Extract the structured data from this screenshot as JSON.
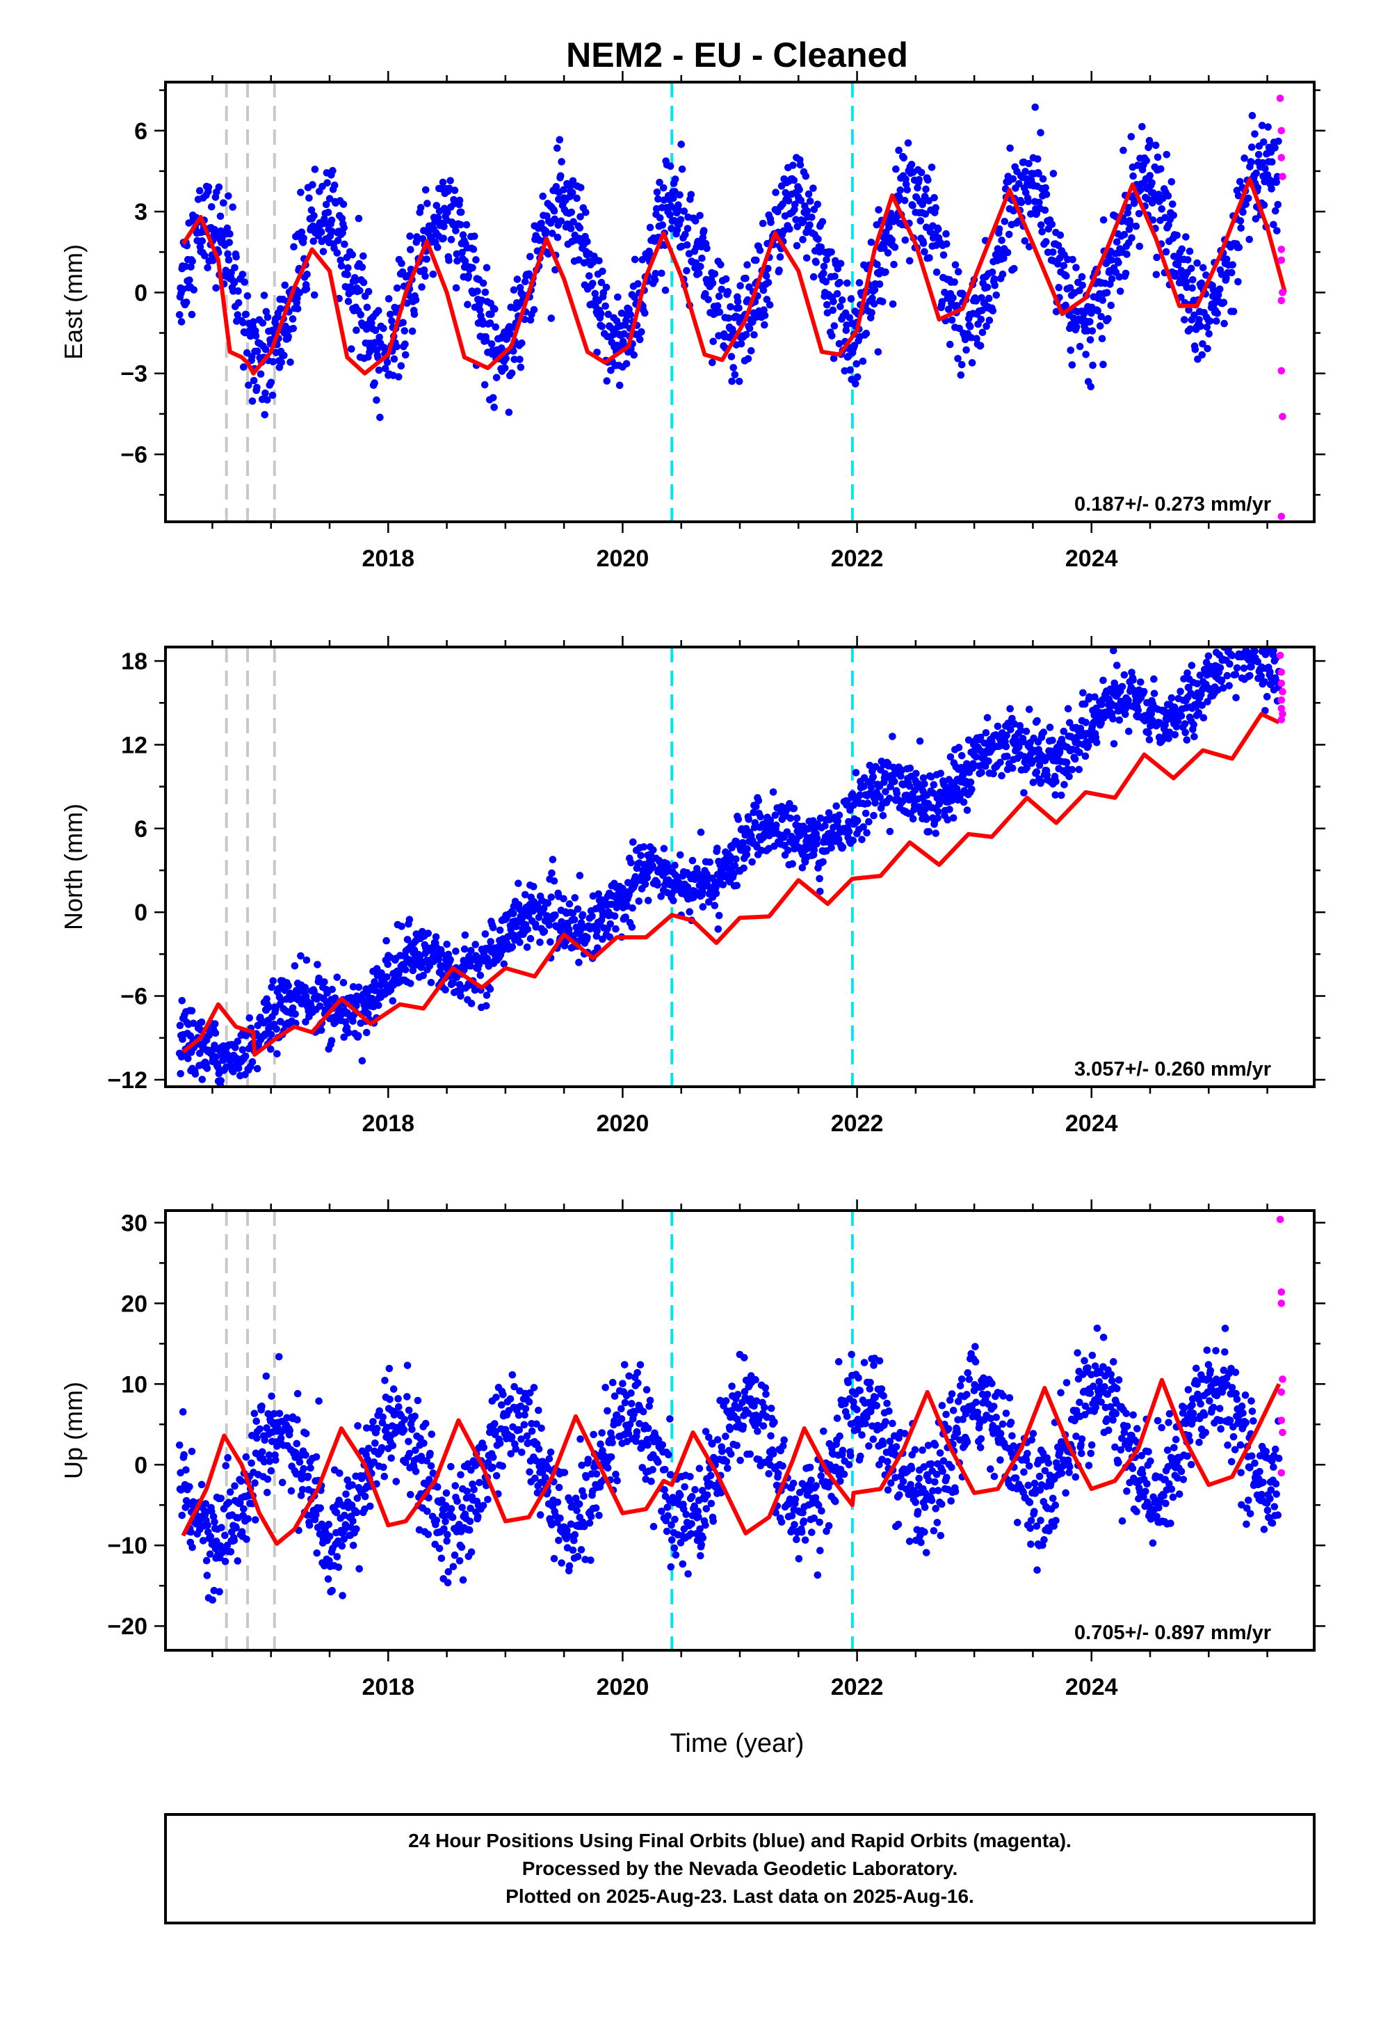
{
  "figure": {
    "title": "NEM2  - EU - Cleaned",
    "xlabel": "Time (year)",
    "footer": [
      "24 Hour Positions Using Final Orbits (blue) and Rapid Orbits (magenta).",
      "Processed by the Nevada Geodetic Laboratory.",
      "Plotted on 2025-Aug-23. Last data on 2025-Aug-16."
    ]
  },
  "colors": {
    "final_orbits": "#0000ff",
    "rapid_orbits": "#ff00ff",
    "model": "#ff0000",
    "equipment_change": "#c8c8c8",
    "event": "#00e5ee"
  },
  "chart_data": [
    {
      "type": "scatter",
      "component": "east",
      "ylabel": "East (mm)",
      "rate_text": "0.187+/- 0.273 mm/yr",
      "xlim": [
        2016.1,
        2025.9
      ],
      "ylim": [
        -8.5,
        7.8
      ],
      "xticks": [
        2018,
        2020,
        2022,
        2024
      ],
      "yticks": [
        -6,
        -3,
        0,
        3,
        6
      ],
      "ytick_labels": [
        "−6",
        "−3",
        "0",
        "3",
        "6"
      ],
      "grey_dashed_x": [
        2016.62,
        2016.8,
        2017.03
      ],
      "cyan_dashed_x": [
        2020.42,
        2021.96
      ],
      "trend": {
        "slope": 0.187,
        "intercept_2016": 0.0,
        "seasonal_amp": 2.5,
        "seasonal_phase": 0.04,
        "noise_sd": 0.95
      },
      "model_points": [
        [
          2016.25,
          1.8
        ],
        [
          2016.4,
          2.8
        ],
        [
          2016.55,
          1.2
        ],
        [
          2016.65,
          -2.2
        ],
        [
          2016.75,
          -2.4
        ],
        [
          2016.8,
          -2.6
        ],
        [
          2016.85,
          -3.0
        ],
        [
          2017.0,
          -2.2
        ],
        [
          2017.2,
          0.2
        ],
        [
          2017.35,
          1.6
        ],
        [
          2017.5,
          0.8
        ],
        [
          2017.65,
          -2.4
        ],
        [
          2017.8,
          -3.0
        ],
        [
          2018.0,
          -2.3
        ],
        [
          2018.15,
          0.0
        ],
        [
          2018.33,
          1.9
        ],
        [
          2018.5,
          0.0
        ],
        [
          2018.65,
          -2.4
        ],
        [
          2018.85,
          -2.8
        ],
        [
          2019.05,
          -2.0
        ],
        [
          2019.2,
          0.0
        ],
        [
          2019.35,
          2.0
        ],
        [
          2019.5,
          0.5
        ],
        [
          2019.7,
          -2.2
        ],
        [
          2019.85,
          -2.6
        ],
        [
          2020.05,
          -2.0
        ],
        [
          2020.2,
          0.6
        ],
        [
          2020.35,
          2.2
        ],
        [
          2020.5,
          0.6
        ],
        [
          2020.7,
          -2.3
        ],
        [
          2020.85,
          -2.5
        ],
        [
          2021.05,
          -1.0
        ],
        [
          2021.3,
          2.2
        ],
        [
          2021.5,
          0.8
        ],
        [
          2021.7,
          -2.2
        ],
        [
          2021.85,
          -2.3
        ],
        [
          2022.0,
          -1.4
        ],
        [
          2022.15,
          1.6
        ],
        [
          2022.3,
          3.6
        ],
        [
          2022.5,
          1.8
        ],
        [
          2022.7,
          -1.0
        ],
        [
          2022.9,
          -0.6
        ],
        [
          2023.1,
          1.6
        ],
        [
          2023.3,
          3.8
        ],
        [
          2023.5,
          1.8
        ],
        [
          2023.75,
          -0.8
        ],
        [
          2023.95,
          -0.2
        ],
        [
          2024.15,
          1.8
        ],
        [
          2024.35,
          4.0
        ],
        [
          2024.55,
          2.0
        ],
        [
          2024.75,
          -0.5
        ],
        [
          2024.9,
          -0.5
        ],
        [
          2025.1,
          1.4
        ],
        [
          2025.35,
          4.2
        ],
        [
          2025.5,
          2.4
        ],
        [
          2025.65,
          0.0
        ]
      ],
      "rapid_points": [
        [
          2025.61,
          7.2
        ],
        [
          2025.62,
          6.0
        ],
        [
          2025.62,
          5.0
        ],
        [
          2025.63,
          4.3
        ],
        [
          2025.62,
          1.6
        ],
        [
          2025.62,
          1.2
        ],
        [
          2025.63,
          0.0
        ],
        [
          2025.62,
          -0.3
        ],
        [
          2025.62,
          -2.9
        ],
        [
          2025.63,
          -4.6
        ],
        [
          2025.62,
          -8.3
        ]
      ]
    },
    {
      "type": "scatter",
      "component": "north",
      "ylabel": "North (mm)",
      "rate_text": "3.057+/- 0.260 mm/yr",
      "xlim": [
        2016.1,
        2025.9
      ],
      "ylim": [
        -12.5,
        19.0
      ],
      "xticks": [
        2018,
        2020,
        2022,
        2024
      ],
      "yticks": [
        -12,
        -6,
        0,
        6,
        12,
        18
      ],
      "ytick_labels": [
        "−12",
        "−6",
        "0",
        "6",
        "12",
        "18"
      ],
      "grey_dashed_x": [
        2016.62,
        2016.8,
        2017.03
      ],
      "cyan_dashed_x": [
        2020.42,
        2021.96
      ],
      "trend": {
        "slope": 3.057,
        "intercept_2016": -10.6,
        "seasonal_amp": 1.3,
        "seasonal_phase": 0.3,
        "noise_sd": 1.1
      },
      "model_points": [
        [
          2016.25,
          -10.0
        ],
        [
          2016.4,
          -9.0
        ],
        [
          2016.55,
          -6.6
        ],
        [
          2016.7,
          -8.2
        ],
        [
          2016.85,
          -8.6
        ],
        [
          2016.86,
          -10.2
        ],
        [
          2017.05,
          -9.0
        ],
        [
          2017.2,
          -8.2
        ],
        [
          2017.35,
          -8.6
        ],
        [
          2017.6,
          -6.2
        ],
        [
          2017.85,
          -8.0
        ],
        [
          2018.1,
          -6.6
        ],
        [
          2018.3,
          -6.9
        ],
        [
          2018.55,
          -4.0
        ],
        [
          2018.8,
          -5.4
        ],
        [
          2019.0,
          -4.0
        ],
        [
          2019.25,
          -4.6
        ],
        [
          2019.5,
          -1.6
        ],
        [
          2019.75,
          -3.3
        ],
        [
          2019.95,
          -1.8
        ],
        [
          2020.2,
          -1.8
        ],
        [
          2020.42,
          -0.2
        ],
        [
          2020.6,
          -0.6
        ],
        [
          2020.8,
          -2.2
        ],
        [
          2021.0,
          -0.4
        ],
        [
          2021.25,
          -0.3
        ],
        [
          2021.5,
          2.3
        ],
        [
          2021.75,
          0.6
        ],
        [
          2021.96,
          2.4
        ],
        [
          2022.2,
          2.6
        ],
        [
          2022.45,
          5.0
        ],
        [
          2022.7,
          3.4
        ],
        [
          2022.95,
          5.6
        ],
        [
          2023.15,
          5.4
        ],
        [
          2023.45,
          8.2
        ],
        [
          2023.7,
          6.4
        ],
        [
          2023.95,
          8.6
        ],
        [
          2024.2,
          8.2
        ],
        [
          2024.45,
          11.3
        ],
        [
          2024.7,
          9.6
        ],
        [
          2024.95,
          11.6
        ],
        [
          2025.2,
          11.0
        ],
        [
          2025.45,
          14.2
        ],
        [
          2025.6,
          13.6
        ]
      ],
      "rapid_points": [
        [
          2025.61,
          18.4
        ],
        [
          2025.62,
          17.2
        ],
        [
          2025.62,
          16.4
        ],
        [
          2025.63,
          15.8
        ],
        [
          2025.62,
          15.2
        ],
        [
          2025.62,
          14.6
        ],
        [
          2025.63,
          14.2
        ],
        [
          2025.62,
          13.8
        ]
      ]
    },
    {
      "type": "scatter",
      "component": "up",
      "ylabel": "Up (mm)",
      "rate_text": "0.705+/- 0.897 mm/yr",
      "xlim": [
        2016.1,
        2025.9
      ],
      "ylim": [
        -23,
        31.5
      ],
      "xticks": [
        2018,
        2020,
        2022,
        2024
      ],
      "yticks": [
        -20,
        -10,
        0,
        10,
        20,
        30
      ],
      "ytick_labels": [
        "−20",
        "−10",
        "0",
        "10",
        "20",
        "30"
      ],
      "grey_dashed_x": [
        2016.62,
        2016.8,
        2017.03
      ],
      "cyan_dashed_x": [
        2020.42,
        2021.96
      ],
      "trend": {
        "slope": 0.705,
        "intercept_2016": -3.0,
        "seasonal_amp": 6.5,
        "seasonal_phase": 0.45,
        "noise_sd": 3.3
      },
      "model_points": [
        [
          2016.25,
          -8.8
        ],
        [
          2016.45,
          -3.0
        ],
        [
          2016.6,
          3.6
        ],
        [
          2016.75,
          0.0
        ],
        [
          2016.9,
          -6.0
        ],
        [
          2017.05,
          -9.8
        ],
        [
          2017.2,
          -8.0
        ],
        [
          2017.4,
          -3.0
        ],
        [
          2017.6,
          4.5
        ],
        [
          2017.8,
          0.0
        ],
        [
          2018.0,
          -7.5
        ],
        [
          2018.15,
          -7.0
        ],
        [
          2018.4,
          -2.0
        ],
        [
          2018.6,
          5.5
        ],
        [
          2018.8,
          0.0
        ],
        [
          2019.0,
          -7.0
        ],
        [
          2019.2,
          -6.5
        ],
        [
          2019.4,
          -1.5
        ],
        [
          2019.6,
          6.0
        ],
        [
          2019.8,
          0.0
        ],
        [
          2020.0,
          -6.0
        ],
        [
          2020.2,
          -5.5
        ],
        [
          2020.35,
          -2.0
        ],
        [
          2020.42,
          -2.5
        ],
        [
          2020.6,
          4.0
        ],
        [
          2020.8,
          -1.0
        ],
        [
          2021.05,
          -8.5
        ],
        [
          2021.25,
          -6.5
        ],
        [
          2021.45,
          0.5
        ],
        [
          2021.55,
          4.5
        ],
        [
          2021.75,
          -1.0
        ],
        [
          2021.96,
          -5.0
        ],
        [
          2021.97,
          -3.5
        ],
        [
          2022.2,
          -3.0
        ],
        [
          2022.4,
          2.0
        ],
        [
          2022.6,
          9.0
        ],
        [
          2022.8,
          2.0
        ],
        [
          2023.0,
          -3.5
        ],
        [
          2023.2,
          -3.0
        ],
        [
          2023.4,
          2.0
        ],
        [
          2023.6,
          9.5
        ],
        [
          2023.8,
          2.5
        ],
        [
          2024.0,
          -3.0
        ],
        [
          2024.2,
          -2.0
        ],
        [
          2024.4,
          2.0
        ],
        [
          2024.6,
          10.5
        ],
        [
          2024.8,
          3.0
        ],
        [
          2025.0,
          -2.5
        ],
        [
          2025.2,
          -1.5
        ],
        [
          2025.4,
          4.0
        ],
        [
          2025.6,
          10.0
        ]
      ],
      "rapid_points": [
        [
          2025.61,
          30.4
        ],
        [
          2025.62,
          21.4
        ],
        [
          2025.62,
          20.0
        ],
        [
          2025.63,
          10.6
        ],
        [
          2025.62,
          9.0
        ],
        [
          2025.62,
          5.5
        ],
        [
          2025.63,
          4.0
        ],
        [
          2025.62,
          -1.0
        ]
      ]
    }
  ]
}
